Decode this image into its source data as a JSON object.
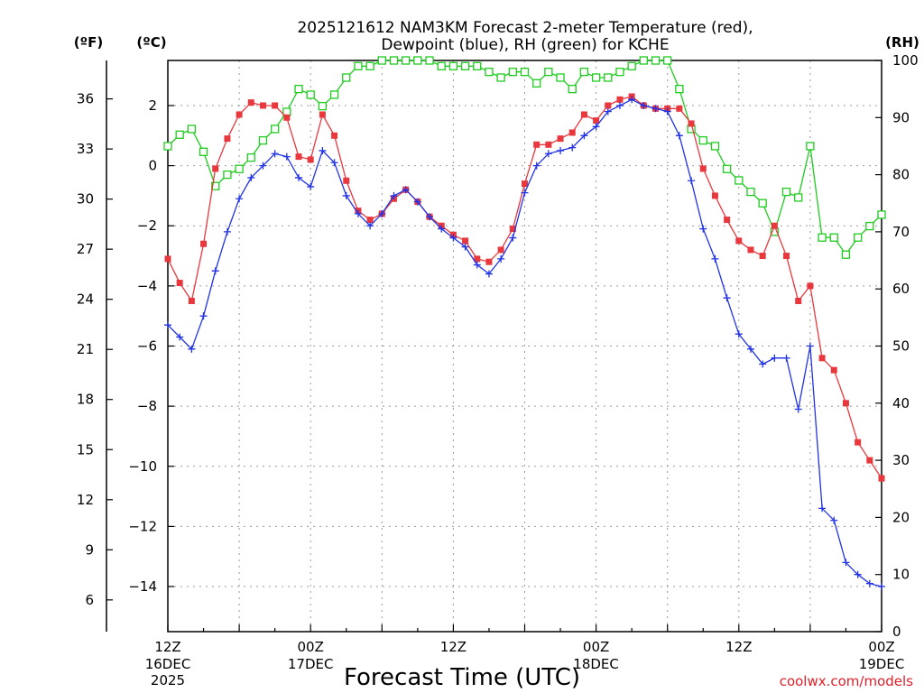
{
  "chart_data": {
    "type": "line",
    "title_line1": "2025121612 NAM3KM Forecast 2-meter Temperature (red),",
    "title_line2": "Dewpoint (blue), RH (green) for KCHE",
    "xlabel": "Forecast Time (UTC)",
    "credit": "coolwx.com/models",
    "unit_f": "(ºF)",
    "unit_c": "(ºC)",
    "unit_rh": "(RH)",
    "x_range_hours": [
      0,
      60
    ],
    "celsius_range": [
      -15.5,
      3.5
    ],
    "rh_range": [
      0,
      100
    ],
    "fahrenheit_ticks": [
      "36",
      "33",
      "30",
      "27",
      "24",
      "21",
      "18",
      "15",
      "12",
      "9",
      "6"
    ],
    "fahrenheit_values": [
      36,
      33,
      30,
      27,
      24,
      21,
      18,
      15,
      12,
      9,
      6
    ],
    "celsius_ticks": [
      "2",
      "0",
      "−2",
      "−4",
      "−6",
      "−8",
      "−10",
      "−12",
      "−14"
    ],
    "celsius_values": [
      2,
      0,
      -2,
      -4,
      -6,
      -8,
      -10,
      -12,
      -14
    ],
    "rh_ticks": [
      "100",
      "90",
      "80",
      "70",
      "60",
      "50",
      "40",
      "30",
      "20",
      "10",
      "0"
    ],
    "rh_values": [
      100,
      90,
      80,
      70,
      60,
      50,
      40,
      30,
      20,
      10,
      0
    ],
    "x_ticks": [
      {
        "hour": 0,
        "line1": "12Z",
        "line2": "16DEC",
        "line3": "2025"
      },
      {
        "hour": 12,
        "line1": "00Z",
        "line2": "17DEC",
        "line3": ""
      },
      {
        "hour": 24,
        "line1": "12Z",
        "line2": "",
        "line3": ""
      },
      {
        "hour": 36,
        "line1": "00Z",
        "line2": "18DEC",
        "line3": ""
      },
      {
        "hour": 48,
        "line1": "12Z",
        "line2": "",
        "line3": ""
      },
      {
        "hour": 60,
        "line1": "00Z",
        "line2": "19DEC",
        "line3": ""
      }
    ],
    "hours": [
      0,
      1,
      2,
      3,
      4,
      5,
      6,
      7,
      8,
      9,
      10,
      11,
      12,
      13,
      14,
      15,
      16,
      17,
      18,
      19,
      20,
      21,
      22,
      23,
      24,
      25,
      26,
      27,
      28,
      29,
      30,
      31,
      32,
      33,
      34,
      35,
      36,
      37,
      38,
      39,
      40,
      41,
      42,
      43,
      44,
      45,
      46,
      47,
      48,
      49,
      50,
      51,
      52,
      53,
      54,
      55,
      56,
      57,
      58,
      59,
      60
    ],
    "series": [
      {
        "name": "Temperature",
        "unit": "C",
        "color": "#e8383e",
        "marker": "filled-square",
        "values": [
          -3.1,
          -3.9,
          -4.5,
          -2.6,
          -0.1,
          0.9,
          1.7,
          2.1,
          2.0,
          2.0,
          1.6,
          0.3,
          0.2,
          1.7,
          1.0,
          -0.5,
          -1.5,
          -1.8,
          -1.6,
          -1.1,
          -0.8,
          -1.2,
          -1.7,
          -2.0,
          -2.3,
          -2.5,
          -3.1,
          -3.2,
          -2.8,
          -2.1,
          -0.6,
          0.7,
          0.7,
          0.9,
          1.1,
          1.7,
          1.5,
          2.0,
          2.2,
          2.3,
          2.0,
          1.9,
          1.9,
          1.9,
          1.4,
          -0.1,
          -1.0,
          -1.8,
          -2.5,
          -2.8,
          -3.0,
          -2.0,
          -3.0,
          -4.5,
          -4.0,
          -6.4,
          -6.8,
          -7.9,
          -9.2,
          -9.8,
          -10.4
        ]
      },
      {
        "name": "Dewpoint",
        "unit": "C",
        "color": "#2233e6",
        "marker": "plus",
        "values": [
          -5.3,
          -5.7,
          -6.1,
          -5.0,
          -3.5,
          -2.2,
          -1.1,
          -0.4,
          0.0,
          0.4,
          0.3,
          -0.4,
          -0.7,
          0.5,
          0.1,
          -1.0,
          -1.6,
          -2.0,
          -1.6,
          -1.0,
          -0.8,
          -1.2,
          -1.7,
          -2.1,
          -2.4,
          -2.7,
          -3.3,
          -3.6,
          -3.1,
          -2.4,
          -0.9,
          0.0,
          0.4,
          0.5,
          0.6,
          1.0,
          1.3,
          1.8,
          2.0,
          2.2,
          2.0,
          1.9,
          1.8,
          1.0,
          -0.5,
          -2.1,
          -3.1,
          -4.4,
          -5.6,
          -6.1,
          -6.6,
          -6.4,
          -6.4,
          -8.1,
          -6.0,
          -11.4,
          -11.8,
          -13.2,
          -13.6,
          -13.9,
          -14.0
        ]
      },
      {
        "name": "RH",
        "unit": "%",
        "color": "#1fcc1f",
        "marker": "open-square",
        "values": [
          85,
          87,
          88,
          84,
          78,
          80,
          81,
          83,
          86,
          88,
          91,
          95,
          94,
          92,
          94,
          97,
          99,
          99,
          100,
          100,
          100,
          100,
          100,
          99,
          99,
          99,
          99,
          98,
          97,
          98,
          98,
          96,
          98,
          97,
          95,
          98,
          97,
          97,
          98,
          99,
          100,
          100,
          100,
          95,
          88,
          86,
          85,
          81,
          79,
          77,
          75,
          70,
          77,
          76,
          85,
          69,
          69,
          66,
          69,
          71,
          73
        ]
      }
    ]
  }
}
